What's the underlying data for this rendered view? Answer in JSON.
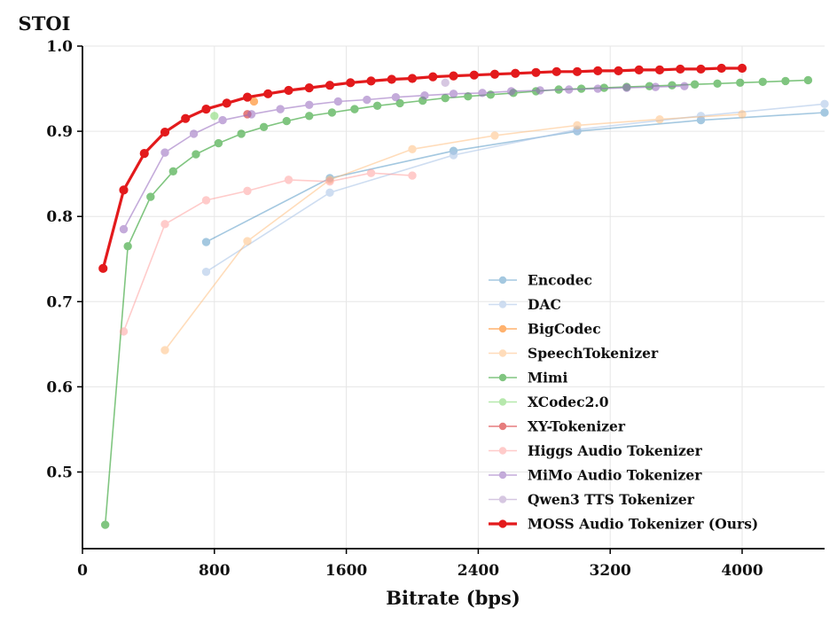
{
  "chart_data": {
    "type": "line",
    "title": "",
    "ylabel": "STOI",
    "xlabel": "Bitrate (bps)",
    "xlim": [
      0,
      4500
    ],
    "ylim": [
      0.41,
      1.0
    ],
    "xticks": [
      0,
      800,
      1600,
      2400,
      3200,
      4000
    ],
    "yticks": [
      0.5,
      0.6,
      0.7,
      0.8,
      0.9,
      1.0
    ],
    "xtick_labels": [
      "0",
      "800",
      "1600",
      "2400",
      "3200",
      "4000"
    ],
    "ytick_labels": [
      "0.5",
      "0.6",
      "0.7",
      "0.8",
      "0.9",
      "1.0"
    ],
    "grid": true,
    "legend_position": "lower-right",
    "series": [
      {
        "name": "Encodec",
        "color": "#1f77b4",
        "opacity": 0.4,
        "width": 1.6,
        "x": [
          750,
          1500,
          2250,
          3000,
          3750,
          4500
        ],
        "y": [
          0.77,
          0.845,
          0.877,
          0.9,
          0.913,
          0.922
        ]
      },
      {
        "name": "DAC",
        "color": "#aec7e8",
        "opacity": 0.6,
        "width": 1.6,
        "x": [
          750,
          1500,
          2250,
          3000,
          3750,
          4500
        ],
        "y": [
          0.735,
          0.828,
          0.872,
          0.902,
          0.918,
          0.932
        ]
      },
      {
        "name": "BigCodec",
        "color": "#ff7f0e",
        "opacity": 0.6,
        "width": 1.6,
        "x": [
          1040
        ],
        "y": [
          0.935
        ]
      },
      {
        "name": "SpeechTokenizer",
        "color": "#ffbb78",
        "opacity": 0.5,
        "width": 1.6,
        "x": [
          500,
          1000,
          1500,
          2000,
          2500,
          3000,
          3500,
          4000
        ],
        "y": [
          0.643,
          0.771,
          0.843,
          0.879,
          0.895,
          0.907,
          0.914,
          0.92
        ]
      },
      {
        "name": "Mimi",
        "color": "#2ca02c",
        "opacity": 0.6,
        "width": 1.6,
        "x": [
          138,
          275,
          413,
          550,
          688,
          825,
          963,
          1100,
          1238,
          1375,
          1513,
          1650,
          1788,
          1925,
          2063,
          2200,
          2338,
          2475,
          2613,
          2750,
          2888,
          3025,
          3163,
          3300,
          3438,
          3575,
          3713,
          3850,
          3988,
          4125,
          4263,
          4400
        ],
        "y": [
          0.438,
          0.765,
          0.823,
          0.853,
          0.873,
          0.886,
          0.897,
          0.905,
          0.912,
          0.918,
          0.922,
          0.926,
          0.93,
          0.933,
          0.936,
          0.939,
          0.941,
          0.943,
          0.945,
          0.947,
          0.949,
          0.95,
          0.951,
          0.952,
          0.953,
          0.954,
          0.955,
          0.956,
          0.957,
          0.958,
          0.959,
          0.96
        ]
      },
      {
        "name": "XCodec2.0",
        "color": "#98df8a",
        "opacity": 0.7,
        "width": 1.6,
        "x": [
          800
        ],
        "y": [
          0.918
        ]
      },
      {
        "name": "XY-Tokenizer",
        "color": "#d62728",
        "opacity": 0.6,
        "width": 1.6,
        "x": [
          1000
        ],
        "y": [
          0.92
        ]
      },
      {
        "name": "Higgs Audio Tokenizer",
        "color": "#ff9896",
        "opacity": 0.5,
        "width": 1.6,
        "x": [
          250,
          500,
          750,
          1000,
          1250,
          1500,
          1750,
          2000
        ],
        "y": [
          0.665,
          0.791,
          0.819,
          0.83,
          0.843,
          0.841,
          0.851,
          0.848
        ]
      },
      {
        "name": "MiMo Audio Tokenizer",
        "color": "#9467bd",
        "opacity": 0.55,
        "width": 1.6,
        "x": [
          250,
          500,
          675,
          850,
          1025,
          1200,
          1375,
          1550,
          1725,
          1900,
          2075,
          2250,
          2425,
          2600,
          2775,
          2950,
          3125,
          3300,
          3475,
          3650
        ],
        "y": [
          0.785,
          0.875,
          0.897,
          0.913,
          0.92,
          0.926,
          0.931,
          0.935,
          0.937,
          0.94,
          0.942,
          0.944,
          0.945,
          0.947,
          0.948,
          0.949,
          0.95,
          0.951,
          0.952,
          0.953
        ]
      },
      {
        "name": "Qwen3 TTS Tokenizer",
        "color": "#c5b0d5",
        "opacity": 0.7,
        "width": 1.6,
        "x": [
          2200
        ],
        "y": [
          0.957
        ]
      },
      {
        "name": "MOSS Audio Tokenizer (Ours)",
        "color": "#e31a1c",
        "opacity": 1.0,
        "width": 3.2,
        "x": [
          125,
          250,
          375,
          500,
          625,
          750,
          875,
          1000,
          1125,
          1250,
          1375,
          1500,
          1625,
          1750,
          1875,
          2000,
          2125,
          2250,
          2375,
          2500,
          2625,
          2750,
          2875,
          3000,
          3125,
          3250,
          3375,
          3500,
          3625,
          3750,
          3875,
          4000
        ],
        "y": [
          0.739,
          0.831,
          0.874,
          0.899,
          0.915,
          0.926,
          0.933,
          0.94,
          0.944,
          0.948,
          0.951,
          0.954,
          0.957,
          0.959,
          0.961,
          0.962,
          0.964,
          0.965,
          0.966,
          0.967,
          0.968,
          0.969,
          0.97,
          0.97,
          0.971,
          0.971,
          0.972,
          0.972,
          0.973,
          0.973,
          0.974,
          0.974
        ]
      }
    ]
  }
}
